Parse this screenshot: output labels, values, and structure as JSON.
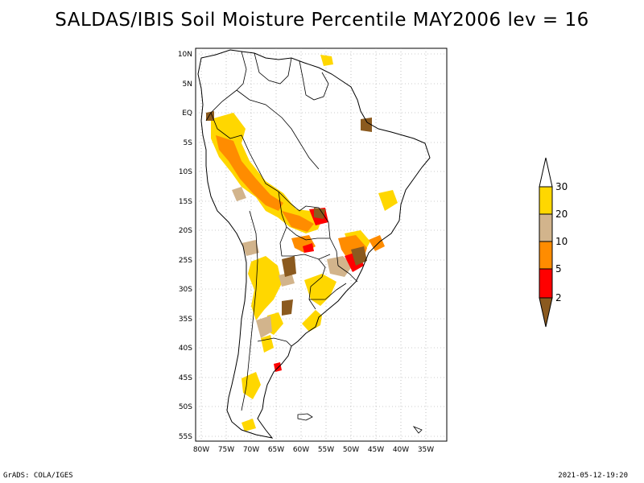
{
  "title": "SALDAS/IBIS Soil Moisture Percentile MAY2006 lev = 16",
  "footer_left": "GrADS: COLA/IGES",
  "footer_right": "2021-05-12-19:20",
  "map": {
    "region": "South America",
    "lon_range": [
      -81,
      -31
    ],
    "lat_range": [
      -56,
      12
    ],
    "grid": "dotted",
    "lon_ticks": [
      "80W",
      "75W",
      "70W",
      "65W",
      "60W",
      "55W",
      "50W",
      "45W",
      "40W",
      "35W"
    ],
    "lat_ticks": [
      "10N",
      "5N",
      "EQ",
      "5S",
      "10S",
      "15S",
      "20S",
      "25S",
      "30S",
      "35S",
      "40S",
      "45S",
      "50S",
      "55S"
    ]
  },
  "colorbar": {
    "labels": [
      "2",
      "5",
      "10",
      "20",
      "30"
    ],
    "colors": {
      "below_2": "#8B5A1F",
      "2_5": "#FF0000",
      "5_10": "#FF8C00",
      "10_20": "#D2B48C",
      "20_30": "#FFD700",
      "above_30": "#FFFFFF"
    }
  }
}
